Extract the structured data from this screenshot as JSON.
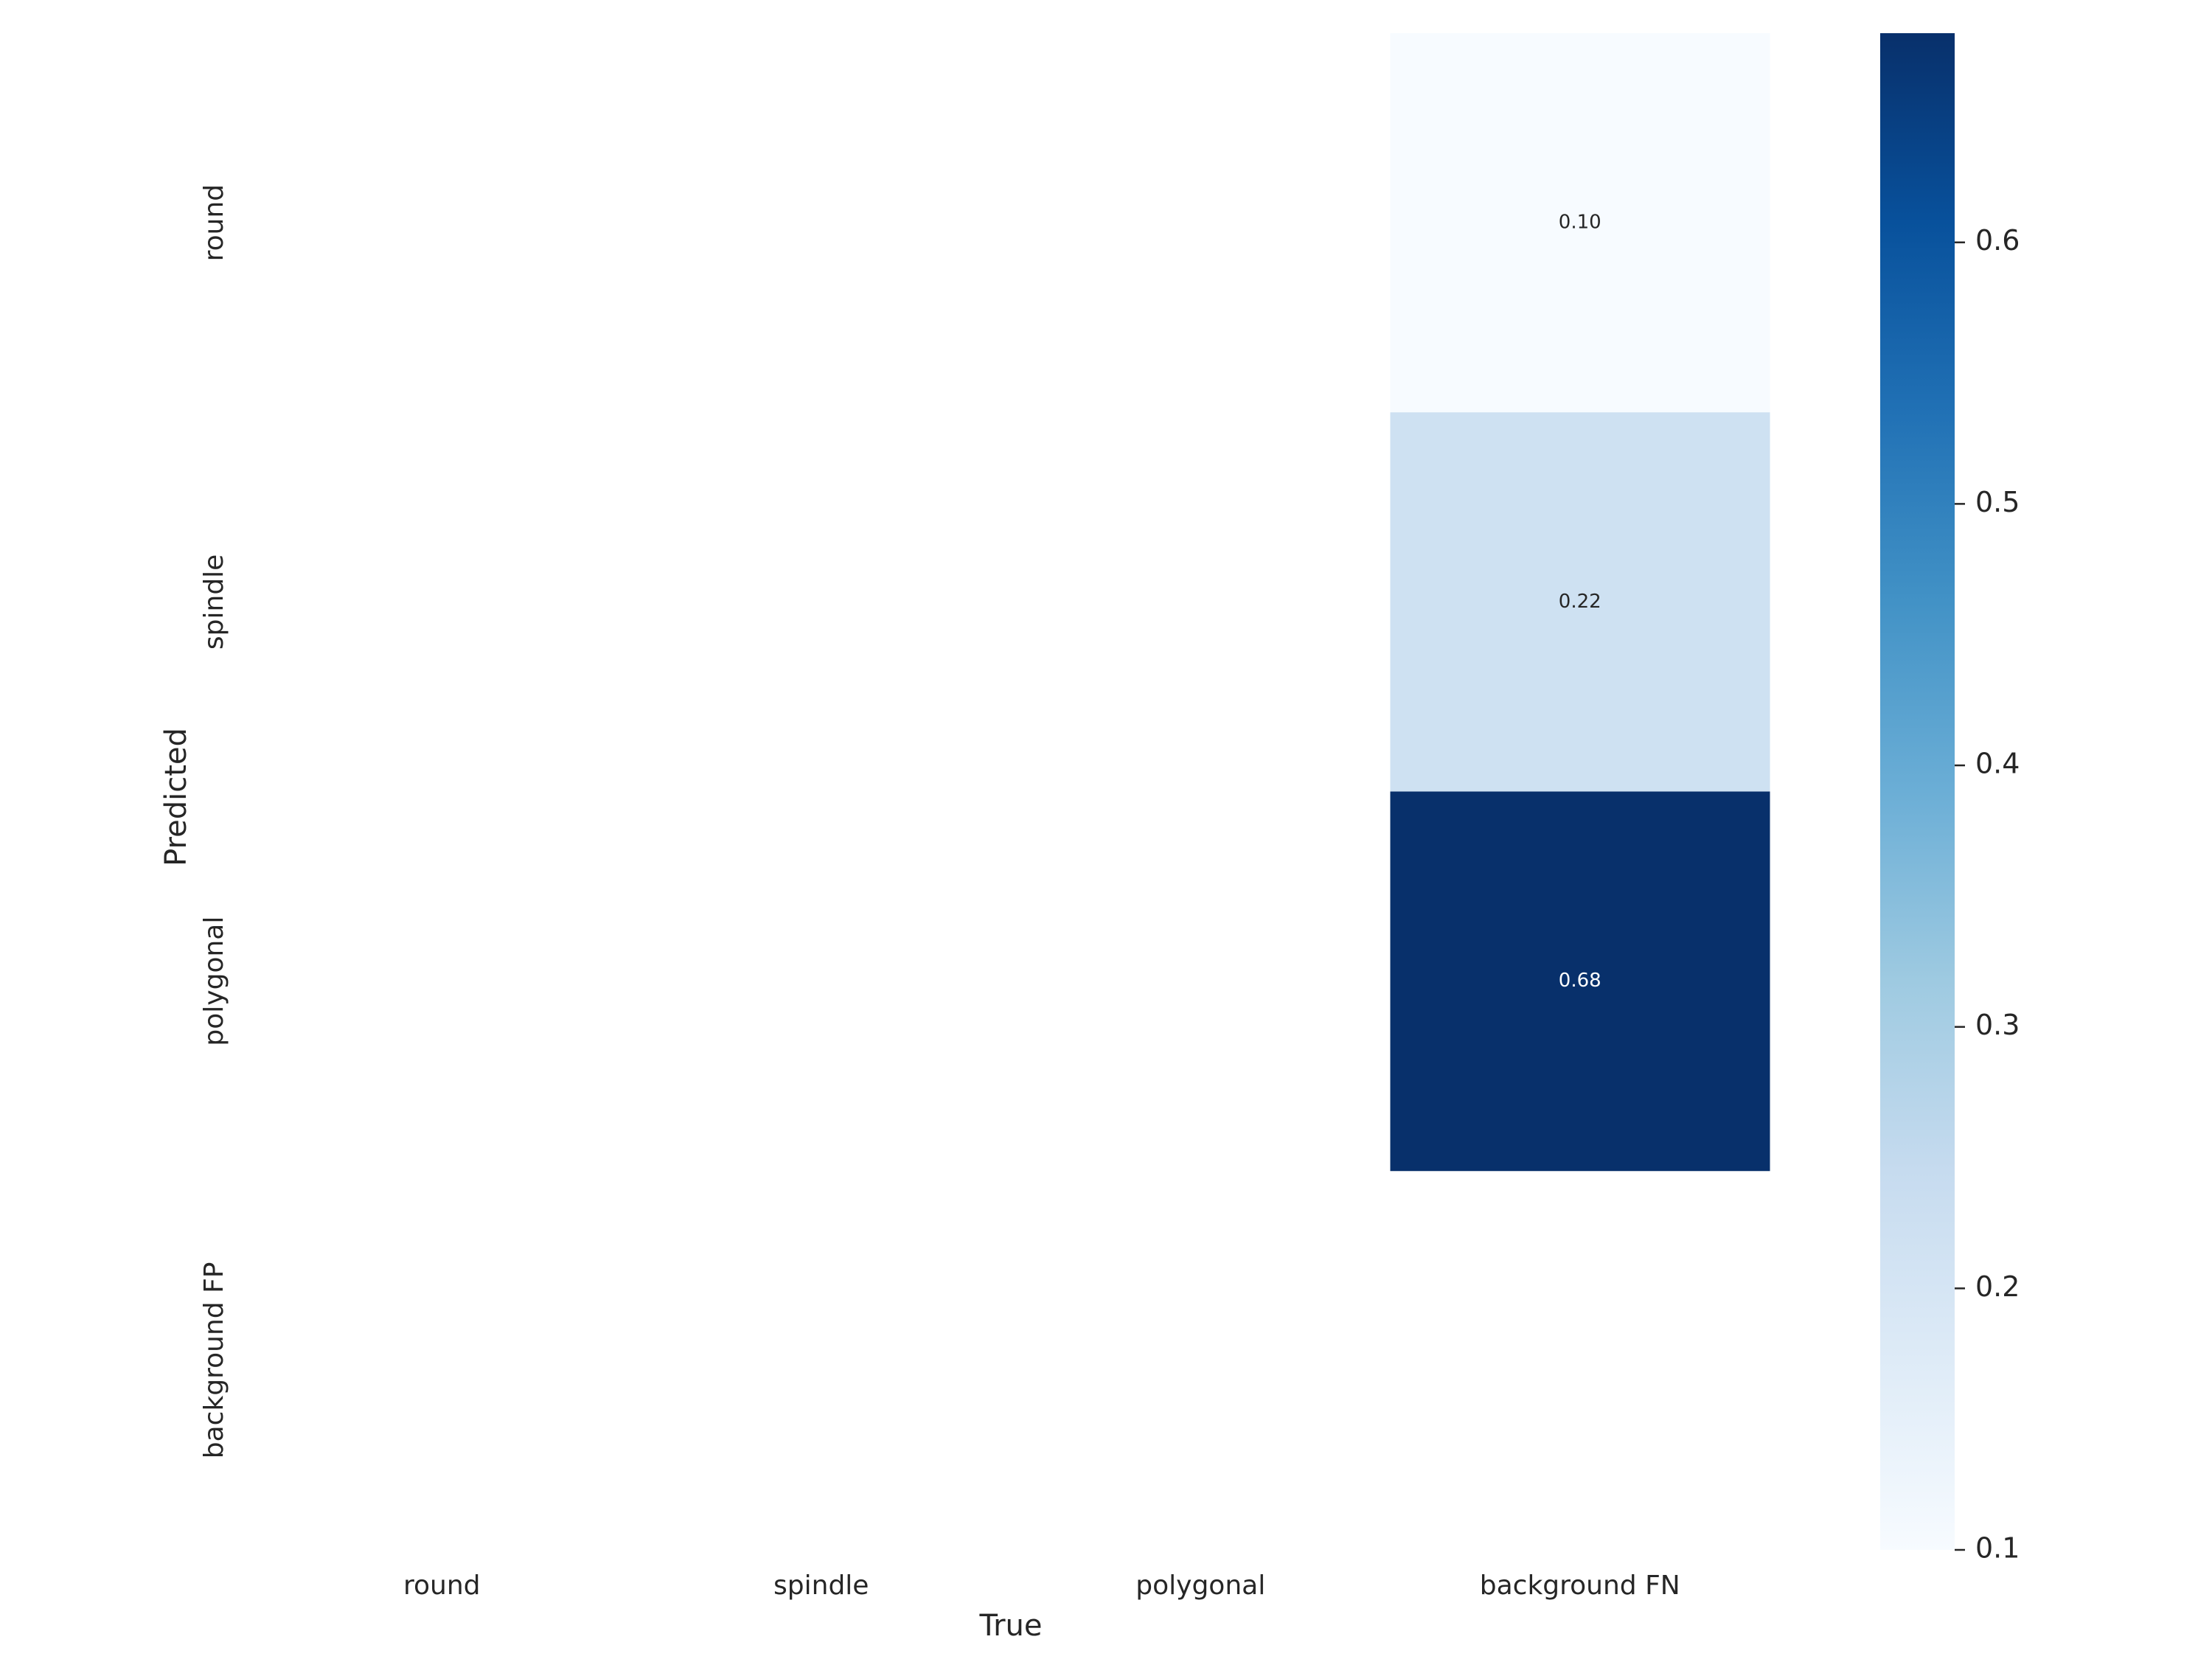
{
  "chart_data": {
    "type": "heatmap",
    "title": "",
    "xlabel": "True",
    "ylabel": "Predicted",
    "x_categories": [
      "round",
      "spindle",
      "polygonal",
      "background FN"
    ],
    "y_categories": [
      "round",
      "spindle",
      "polygonal",
      "background FP"
    ],
    "matrix": [
      [
        null,
        null,
        null,
        0.1
      ],
      [
        null,
        null,
        null,
        0.22
      ],
      [
        null,
        null,
        null,
        0.68
      ],
      [
        null,
        null,
        null,
        null
      ]
    ],
    "cell_labels": [
      [
        null,
        null,
        null,
        "0.10"
      ],
      [
        null,
        null,
        null,
        "0.22"
      ],
      [
        null,
        null,
        null,
        "0.68"
      ],
      [
        null,
        null,
        null,
        null
      ]
    ],
    "colormap": "Blues",
    "color_min": "#f7fbff",
    "color_max": "#08306b",
    "colorbar": {
      "vmin": 0.1,
      "vmax": 0.68,
      "ticks": [
        0.1,
        0.2,
        0.3,
        0.4,
        0.5,
        0.6
      ],
      "tick_labels": [
        "0.1",
        "0.2",
        "0.3",
        "0.4",
        "0.5",
        "0.6"
      ]
    },
    "grid": false,
    "legend": "colorbar-right"
  }
}
